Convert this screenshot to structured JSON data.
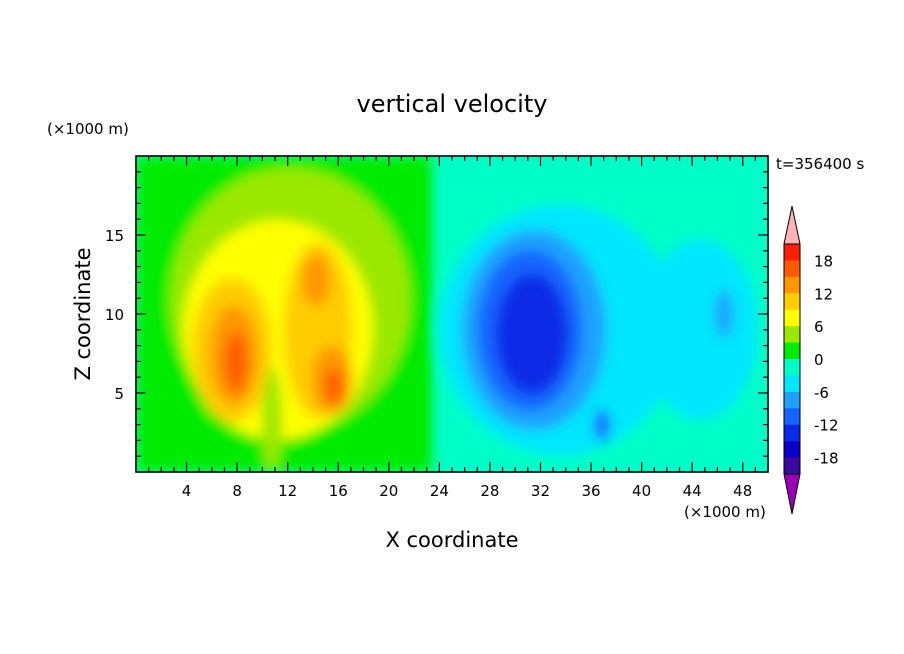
{
  "chart_data": {
    "type": "heatmap",
    "title": "vertical velocity",
    "xlabel": "X coordinate",
    "ylabel": "Z coordinate",
    "x_unit": "(×1000 m)",
    "y_unit": "(×1000 m)",
    "time_label": "t=356400 s",
    "xlim": [
      0,
      50
    ],
    "ylim": [
      0,
      20
    ],
    "xticks": [
      "4",
      "8",
      "12",
      "16",
      "20",
      "24",
      "28",
      "32",
      "36",
      "40",
      "44",
      "48"
    ],
    "yticks": [
      "5",
      "10",
      "15"
    ],
    "colorbar": {
      "levels": [
        -21,
        -18,
        -15,
        -12,
        -9,
        -6,
        -3,
        0,
        3,
        6,
        9,
        12,
        15,
        18,
        21
      ],
      "labels": [
        "18",
        "12",
        "6",
        "0",
        "-6",
        "-12",
        "-18"
      ],
      "colors": [
        "#9a00b8",
        "#3a0aa0",
        "#0c00c8",
        "#0a2ae6",
        "#1464ff",
        "#1ea0ff",
        "#00e6ff",
        "#00ffc8",
        "#00eb00",
        "#9be800",
        "#ffff00",
        "#ffcc00",
        "#ff9600",
        "#ff5a00",
        "#ff1e00",
        "#ffb4b4"
      ]
    }
  }
}
